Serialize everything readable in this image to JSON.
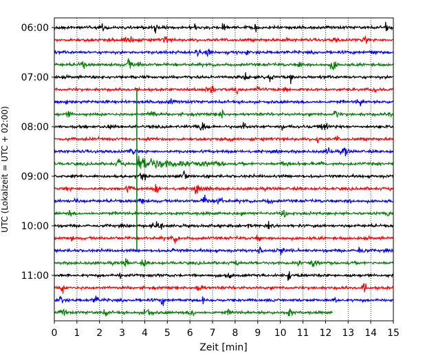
{
  "chart_data": {
    "type": "line",
    "xlabel": "Zeit  [min]",
    "ylabel": "UTC (Lokalzeit = UTC + 02:00)",
    "xlim": [
      0,
      15
    ],
    "x_ticks": [
      0,
      1,
      2,
      3,
      4,
      5,
      6,
      7,
      8,
      9,
      10,
      11,
      12,
      13,
      14,
      15
    ],
    "y_ticks": [
      "06:00",
      "07:00",
      "08:00",
      "09:00",
      "10:00",
      "11:00"
    ],
    "row_minutes": 15,
    "start_time": "06:00",
    "row_colors": [
      "#000000",
      "#ff0000",
      "#0000ff",
      "#008000"
    ],
    "last_row_end_min": 12.3,
    "grid": "vertical dotted",
    "event": {
      "row_time": "08:45",
      "onset_min": 3.65,
      "decay_end_min": 7.5
    }
  }
}
